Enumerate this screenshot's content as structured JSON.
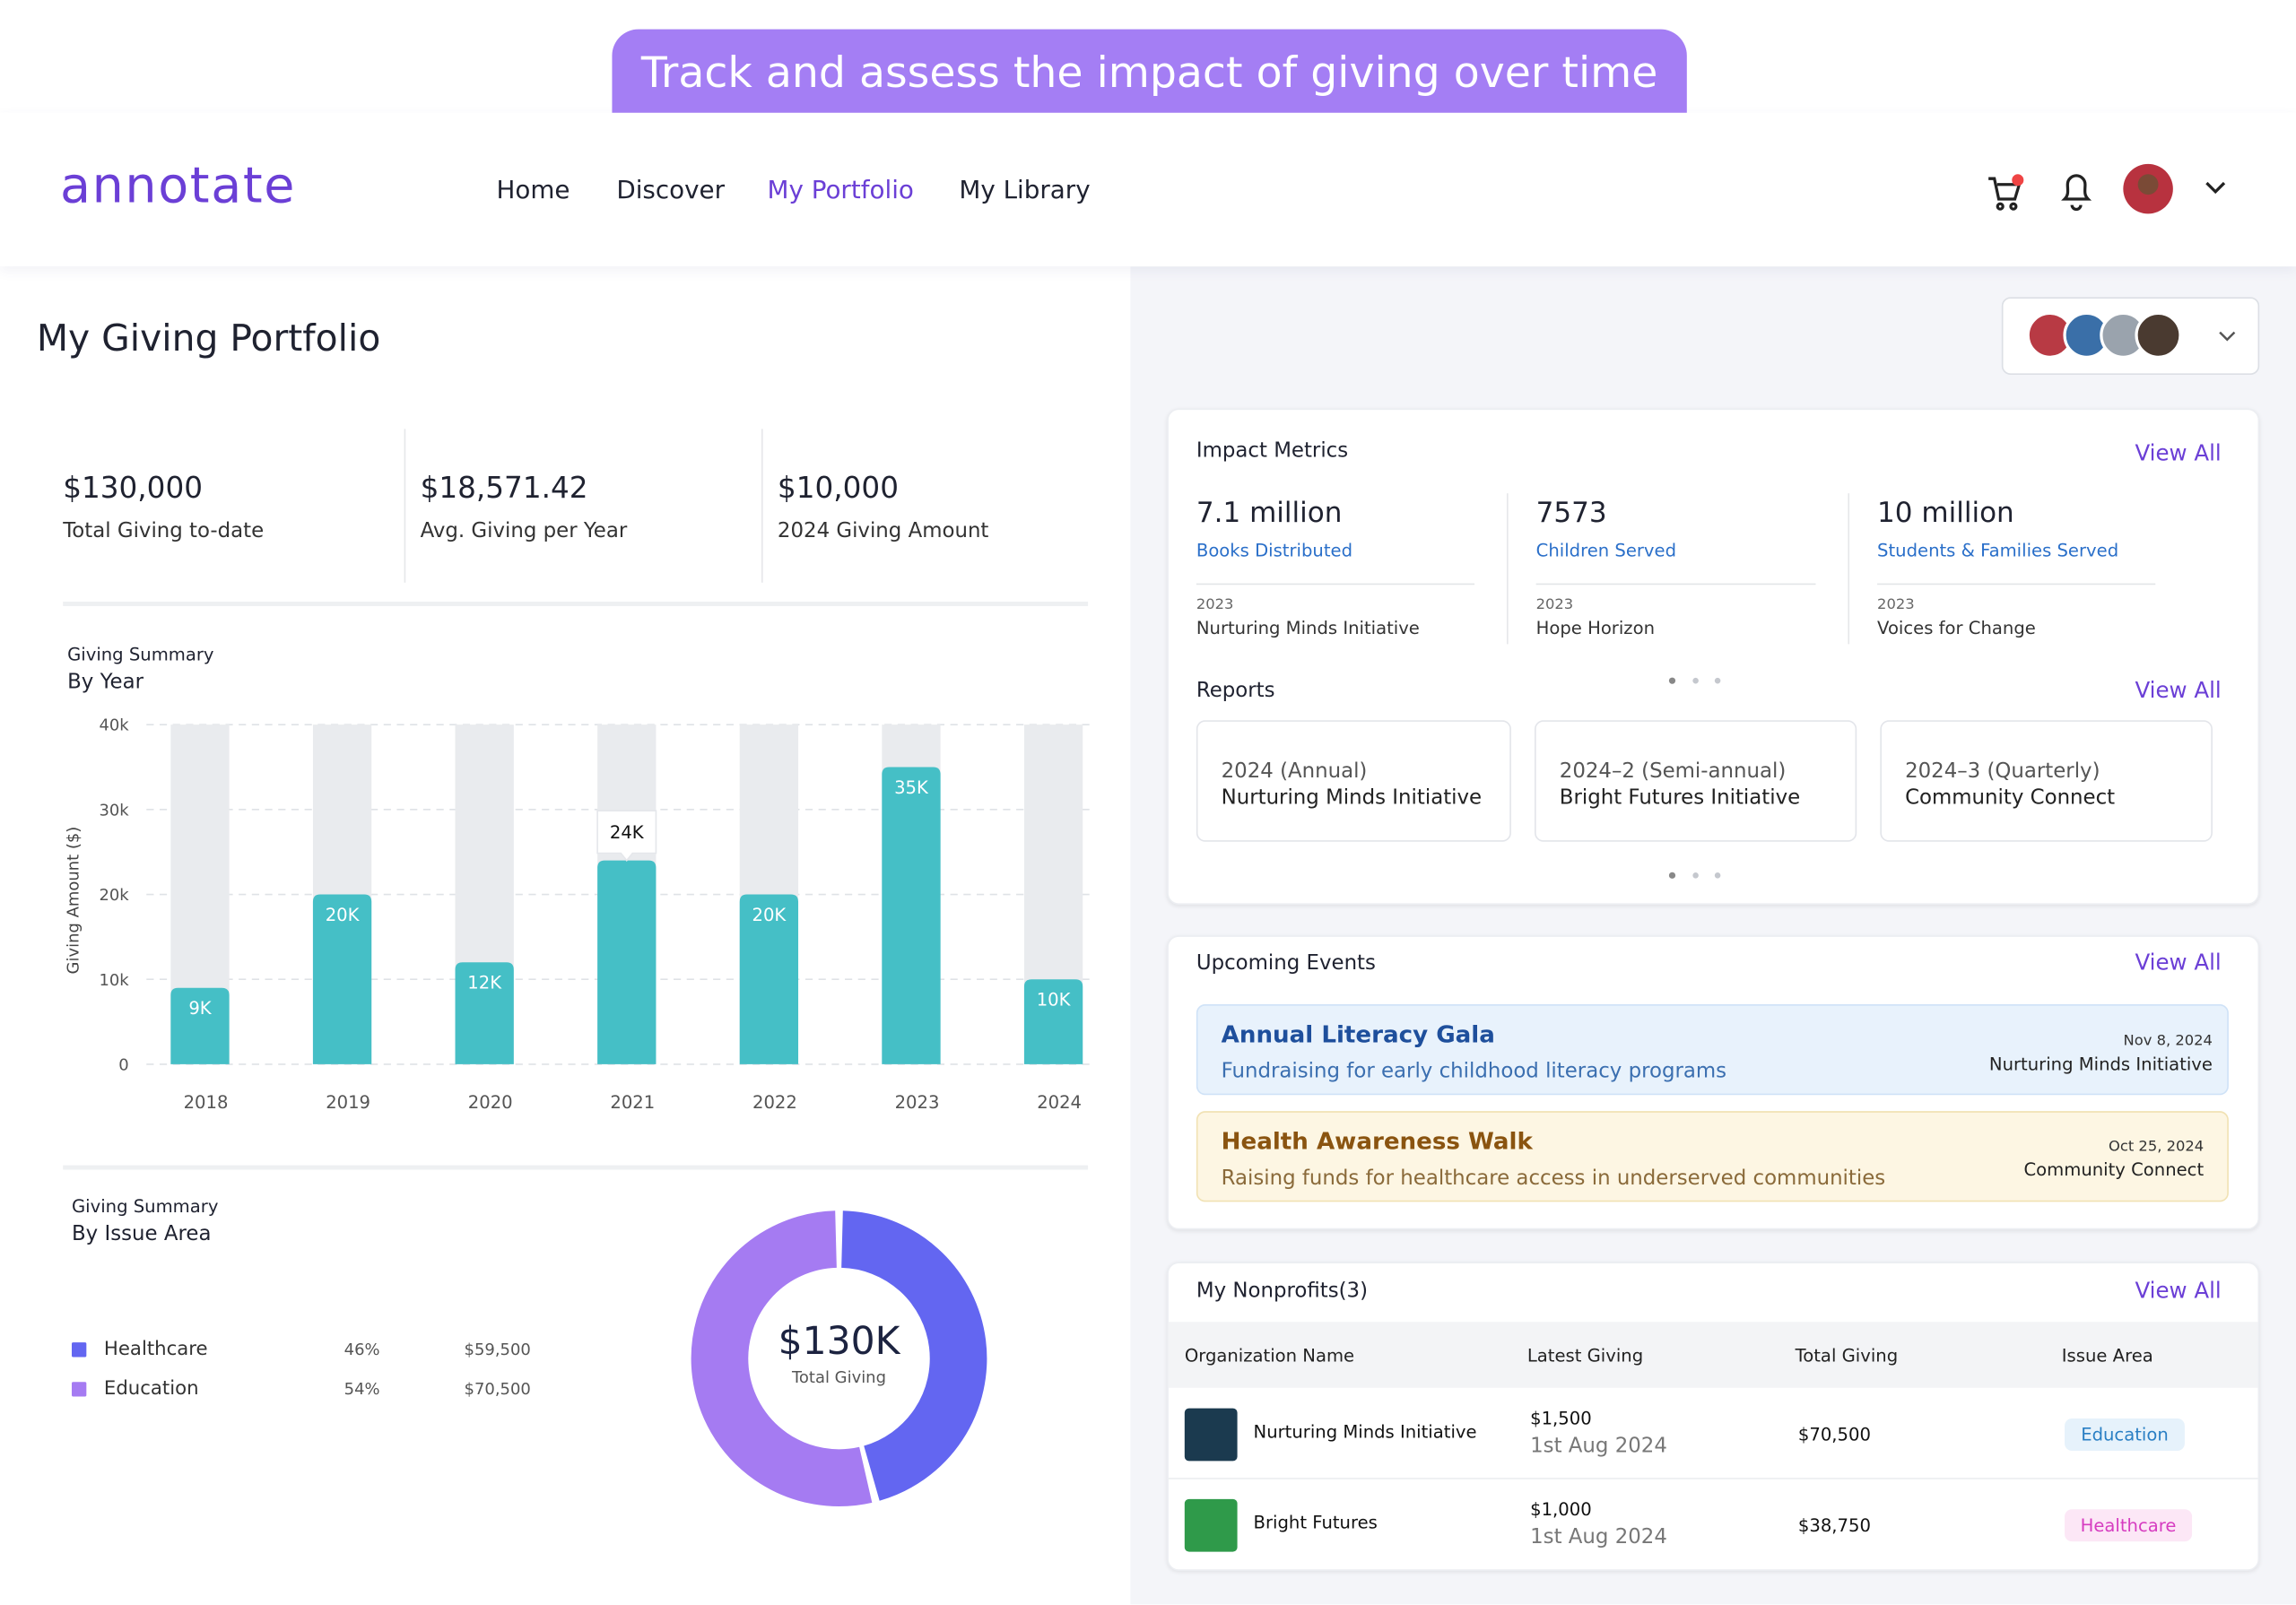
{
  "banner": "Track and assess the impact of giving over time",
  "header": {
    "logo": "annotate",
    "nav": [
      "Home",
      "Discover",
      "My Portfolio",
      "My Library"
    ]
  },
  "page_title": "My Giving Portfolio",
  "summary": [
    {
      "value": "$130,000",
      "label": "Total Giving to-date"
    },
    {
      "value": "$18,571.42",
      "label": "Avg. Giving per Year"
    },
    {
      "value": "$10,000",
      "label": "2024 Giving Amount"
    }
  ],
  "giving_by_year": {
    "type": "bar",
    "title": "Giving Summary",
    "subtitle": "By Year",
    "y_label": "Giving Amount ($)",
    "categories": [
      "2018",
      "2019",
      "2020",
      "2021",
      "2022",
      "2023",
      "2024"
    ],
    "values": [
      9000,
      20000,
      12000,
      24000,
      20000,
      35000,
      10000
    ],
    "value_labels": [
      "9K",
      "20K",
      "12K",
      "24K",
      "20K",
      "35K",
      "10K"
    ],
    "highlight_index": 3,
    "color": "#45bfc6",
    "track_color": "#e9ebee",
    "ylim": [
      0,
      40000
    ],
    "yticks": [
      0,
      {
        "value": 10000,
        "label": "10k"
      },
      {
        "value": 20000,
        "label": "20k"
      },
      {
        "value": 30000,
        "label": "30k"
      },
      {
        "value": 40000,
        "label": "40k"
      }
    ],
    "grid": true
  },
  "giving_by_issue": {
    "type": "donut",
    "title": "Giving Summary",
    "subtitle": "By Issue Area",
    "categories": [
      "Healthcare",
      "Education"
    ],
    "values": [
      46,
      54
    ],
    "value_labels": [
      "46%",
      "54%"
    ],
    "amounts": [
      "$59,500",
      "$70,500"
    ],
    "colors": [
      "#6366f1",
      "#a57bf2"
    ],
    "center_value": "$130K",
    "center_label": "Total Giving"
  },
  "impact_metrics": {
    "title": "Impact Metrics",
    "view_all": "View All",
    "items": [
      {
        "value": "7.1 million",
        "label": "Books Distributed",
        "year": "2023",
        "org": "Nurturing Minds Initiative"
      },
      {
        "value": "7573",
        "label": "Children Served",
        "year": "2023",
        "org": "Hope Horizon"
      },
      {
        "value": "10 million",
        "label": "Students & Families Served",
        "year": "2023",
        "org": "Voices for Change"
      }
    ]
  },
  "reports": {
    "title": "Reports",
    "view_all": "View All",
    "items": [
      {
        "period": "2024 (Annual)",
        "org": "Nurturing Minds Initiative"
      },
      {
        "period": "2024–2 (Semi-annual)",
        "org": "Bright Futures Initiative"
      },
      {
        "period": "2024–3 (Quarterly)",
        "org": "Community Connect"
      }
    ]
  },
  "events": {
    "title": "Upcoming Events",
    "view_all": "View All",
    "items": [
      {
        "name": "Annual Literacy Gala",
        "description": "Fundraising for early childhood literacy programs",
        "date": "Nov 8, 2024",
        "org": "Nurturing Minds Initiative"
      },
      {
        "name": "Health Awareness Walk",
        "description": "Raising funds for healthcare access in underserved communities",
        "date": "Oct 25, 2024",
        "org": "Community Connect"
      }
    ]
  },
  "nonprofits": {
    "title": "My Nonprofits(3)",
    "view_all": "View All",
    "columns": [
      "Organization Name",
      "Latest Giving",
      "Total Giving",
      "Issue Area"
    ],
    "rows": [
      {
        "name": "Nurturing Minds Initiative",
        "latest": "$1,500",
        "date": "1st Aug 2024",
        "total": "$70,500",
        "area": "Education"
      },
      {
        "name": "Bright Futures",
        "latest": "$1,000",
        "date": "1st Aug 2024",
        "total": "$38,750",
        "area": "Healthcare"
      }
    ]
  }
}
